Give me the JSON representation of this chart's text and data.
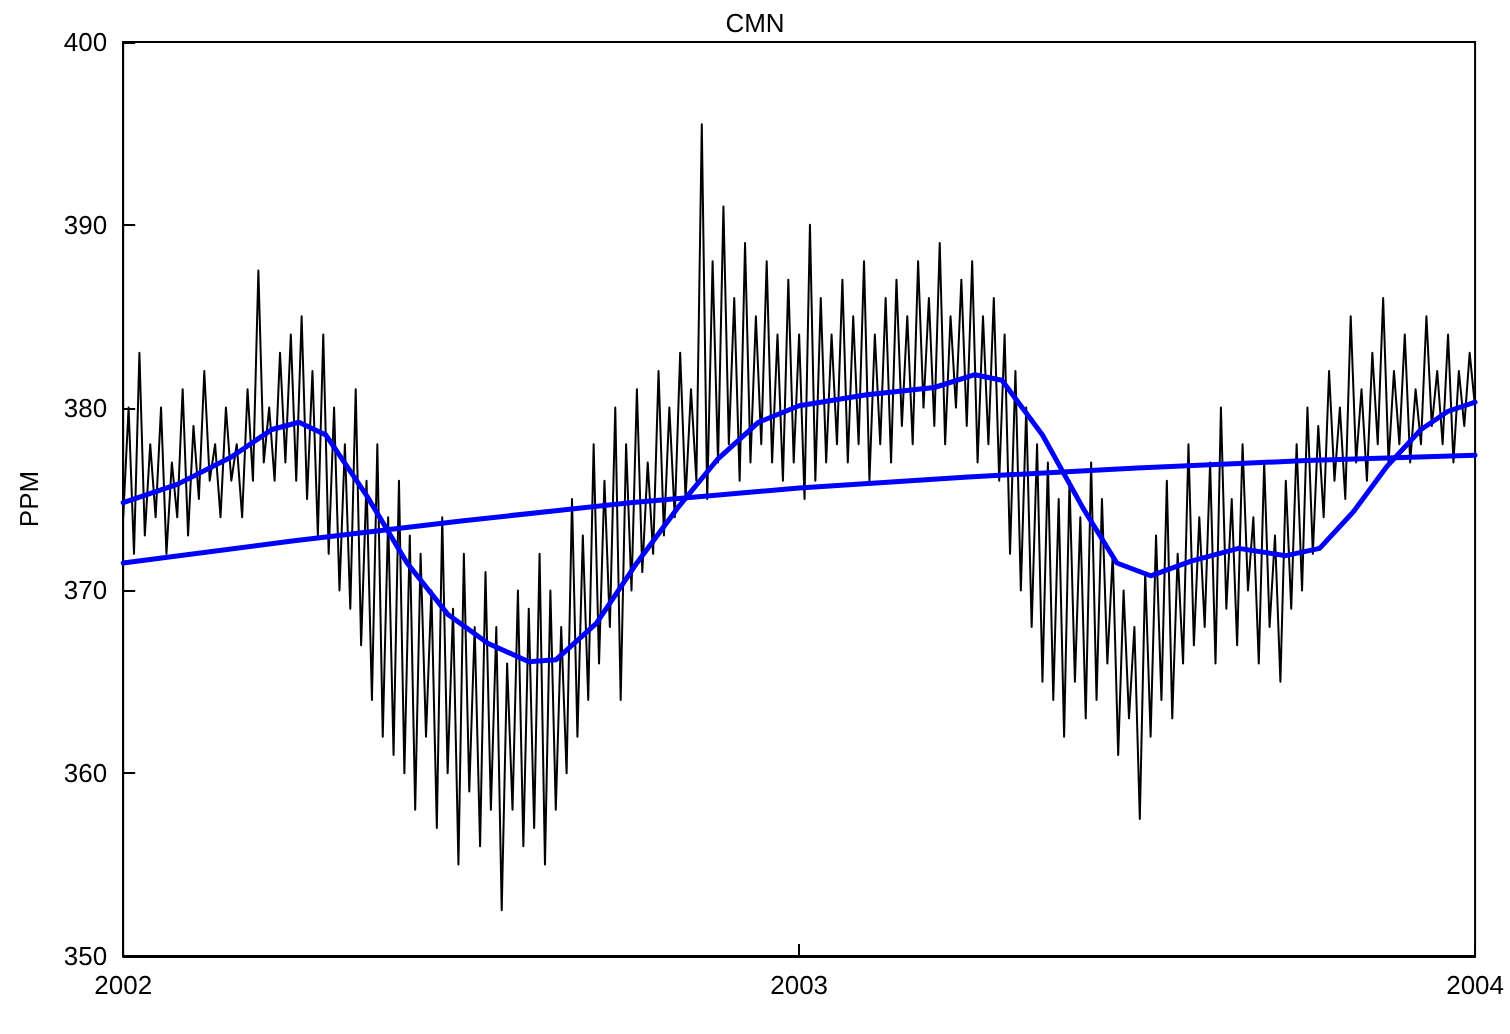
{
  "chart_data": {
    "type": "line",
    "title": "CMN",
    "ylabel": "PPM",
    "xlim": [
      2002,
      2004
    ],
    "xticks": [
      2002,
      2003,
      2004
    ],
    "ylim": [
      350,
      400
    ],
    "yticks": [
      350,
      360,
      370,
      380,
      390,
      400
    ],
    "grid": false,
    "marker": "none",
    "line_style": "solid",
    "series": [
      {
        "color": "#000000",
        "x": [
          2002.0,
          2002.008,
          2002.016,
          2002.024,
          2002.032,
          2002.04,
          2002.048,
          2002.056,
          2002.064,
          2002.072,
          2002.08,
          2002.088,
          2002.096,
          2002.104,
          2002.112,
          2002.12,
          2002.128,
          2002.136,
          2002.144,
          2002.152,
          2002.16,
          2002.168,
          2002.176,
          2002.184,
          2002.192,
          2002.2,
          2002.208,
          2002.216,
          2002.224,
          2002.232,
          2002.24,
          2002.248,
          2002.256,
          2002.264,
          2002.272,
          2002.28,
          2002.288,
          2002.296,
          2002.304,
          2002.312,
          2002.32,
          2002.328,
          2002.336,
          2002.344,
          2002.352,
          2002.36,
          2002.368,
          2002.376,
          2002.384,
          2002.392,
          2002.4,
          2002.408,
          2002.416,
          2002.424,
          2002.432,
          2002.44,
          2002.448,
          2002.456,
          2002.464,
          2002.472,
          2002.48,
          2002.488,
          2002.496,
          2002.504,
          2002.512,
          2002.52,
          2002.528,
          2002.536,
          2002.544,
          2002.552,
          2002.56,
          2002.568,
          2002.576,
          2002.584,
          2002.592,
          2002.6,
          2002.608,
          2002.616,
          2002.624,
          2002.632,
          2002.64,
          2002.648,
          2002.656,
          2002.664,
          2002.672,
          2002.68,
          2002.688,
          2002.696,
          2002.704,
          2002.712,
          2002.72,
          2002.728,
          2002.736,
          2002.744,
          2002.752,
          2002.76,
          2002.768,
          2002.776,
          2002.784,
          2002.792,
          2002.8,
          2002.808,
          2002.816,
          2002.824,
          2002.832,
          2002.84,
          2002.848,
          2002.856,
          2002.864,
          2002.872,
          2002.88,
          2002.888,
          2002.896,
          2002.904,
          2002.912,
          2002.92,
          2002.928,
          2002.936,
          2002.944,
          2002.952,
          2002.96,
          2002.968,
          2002.976,
          2002.984,
          2002.992,
          2003.0,
          2003.008,
          2003.016,
          2003.024,
          2003.032,
          2003.04,
          2003.048,
          2003.056,
          2003.064,
          2003.072,
          2003.08,
          2003.088,
          2003.096,
          2003.104,
          2003.112,
          2003.12,
          2003.128,
          2003.136,
          2003.144,
          2003.152,
          2003.16,
          2003.168,
          2003.176,
          2003.184,
          2003.192,
          2003.2,
          2003.208,
          2003.216,
          2003.224,
          2003.232,
          2003.24,
          2003.248,
          2003.256,
          2003.264,
          2003.272,
          2003.28,
          2003.288,
          2003.296,
          2003.304,
          2003.312,
          2003.32,
          2003.328,
          2003.336,
          2003.344,
          2003.352,
          2003.36,
          2003.368,
          2003.376,
          2003.384,
          2003.392,
          2003.4,
          2003.408,
          2003.416,
          2003.424,
          2003.432,
          2003.44,
          2003.448,
          2003.456,
          2003.464,
          2003.472,
          2003.48,
          2003.488,
          2003.496,
          2003.504,
          2003.512,
          2003.52,
          2003.528,
          2003.536,
          2003.544,
          2003.552,
          2003.56,
          2003.568,
          2003.576,
          2003.584,
          2003.592,
          2003.6,
          2003.608,
          2003.616,
          2003.624,
          2003.632,
          2003.64,
          2003.648,
          2003.656,
          2003.664,
          2003.672,
          2003.68,
          2003.688,
          2003.696,
          2003.704,
          2003.712,
          2003.72,
          2003.728,
          2003.736,
          2003.744,
          2003.752,
          2003.76,
          2003.768,
          2003.776,
          2003.784,
          2003.792,
          2003.8,
          2003.808,
          2003.816,
          2003.824,
          2003.832,
          2003.84,
          2003.848,
          2003.856,
          2003.864,
          2003.872,
          2003.88,
          2003.888,
          2003.896,
          2003.904,
          2003.912,
          2003.92,
          2003.928,
          2003.936,
          2003.944,
          2003.952,
          2003.96,
          2003.968,
          2003.976,
          2003.984,
          2003.992,
          2004.0
        ],
        "values": [
          374,
          380,
          372,
          383,
          373,
          378,
          374,
          380,
          372,
          377,
          374,
          381,
          373,
          379,
          375,
          382,
          376,
          378,
          374,
          380,
          376,
          378,
          374,
          381,
          376,
          387.5,
          377,
          380,
          376,
          383,
          377,
          384,
          376,
          385,
          375,
          382,
          373,
          384,
          372,
          380,
          370,
          378,
          369,
          381,
          367,
          376,
          364,
          378,
          362,
          374,
          361,
          376,
          360,
          373,
          358,
          372,
          362,
          370,
          357,
          374,
          360,
          369,
          355,
          372,
          359,
          368,
          356,
          371,
          358,
          368,
          352.5,
          366,
          358,
          370,
          356,
          369,
          357,
          372,
          355,
          370,
          358,
          368,
          360,
          375,
          362,
          373,
          364,
          378,
          366,
          376,
          368,
          380,
          364,
          378,
          370,
          381,
          371,
          377,
          372,
          382,
          373,
          380,
          374,
          383,
          375,
          381,
          376,
          395.5,
          375,
          388,
          377,
          391,
          378,
          386,
          376,
          389,
          377,
          385,
          378,
          388,
          377,
          384,
          376,
          387,
          377,
          384,
          375,
          390,
          376,
          386,
          377,
          384,
          378,
          387,
          377,
          385,
          378,
          388,
          376,
          384,
          378,
          386,
          377,
          387,
          379,
          385,
          378,
          388,
          380,
          386,
          379,
          389,
          378,
          385,
          380,
          387,
          379,
          388,
          377,
          385,
          378,
          386,
          376,
          384,
          372,
          382,
          370,
          380,
          368,
          378,
          365,
          377,
          364,
          375,
          362,
          376,
          365,
          374,
          363,
          377,
          364,
          375,
          366,
          372,
          361,
          370,
          363,
          368,
          357.5,
          371,
          362,
          373,
          364,
          376,
          363,
          372,
          366,
          378,
          367,
          374,
          368,
          377,
          366,
          380,
          369,
          375,
          367,
          378,
          370,
          374,
          366,
          377,
          368,
          373,
          365,
          376,
          369,
          378,
          370,
          380,
          372,
          379,
          374,
          382,
          376,
          380,
          375,
          385,
          377,
          381,
          376,
          383,
          378,
          386,
          377,
          382,
          378,
          384,
          377,
          381,
          378,
          385,
          379,
          382,
          378,
          384,
          377,
          382,
          379,
          383,
          380
        ]
      },
      {
        "color": "#0000ff",
        "x": [
          2002.0,
          2002.08,
          2002.16,
          2002.22,
          2002.26,
          2002.3,
          2002.36,
          2002.42,
          2002.48,
          2002.54,
          2002.6,
          2002.64,
          2002.7,
          2002.76,
          2002.82,
          2002.88,
          2002.94,
          2003.0,
          2003.1,
          2003.2,
          2003.26,
          2003.3,
          2003.36,
          2003.42,
          2003.47,
          2003.52,
          2003.58,
          2003.65,
          2003.72,
          2003.77,
          2003.82,
          2003.87,
          2003.92,
          2003.96,
          2004.0
        ],
        "values": [
          374.8,
          375.8,
          377.3,
          378.8,
          379.2,
          378.5,
          375.2,
          371.5,
          368.7,
          367.1,
          366.1,
          366.2,
          368.2,
          371.5,
          374.5,
          377.2,
          379.2,
          380.1,
          380.7,
          381.1,
          381.8,
          381.5,
          378.5,
          374.5,
          371.5,
          370.8,
          371.6,
          372.3,
          371.9,
          372.3,
          374.3,
          376.8,
          378.8,
          379.8,
          380.3
        ]
      },
      {
        "color": "#0000ff",
        "x": [
          2002.0,
          2002.25,
          2002.5,
          2002.75,
          2003.0,
          2003.25,
          2003.5,
          2003.75,
          2004.0
        ],
        "values": [
          371.5,
          372.7,
          373.8,
          374.8,
          375.6,
          376.2,
          376.7,
          377.1,
          377.4
        ]
      }
    ]
  }
}
